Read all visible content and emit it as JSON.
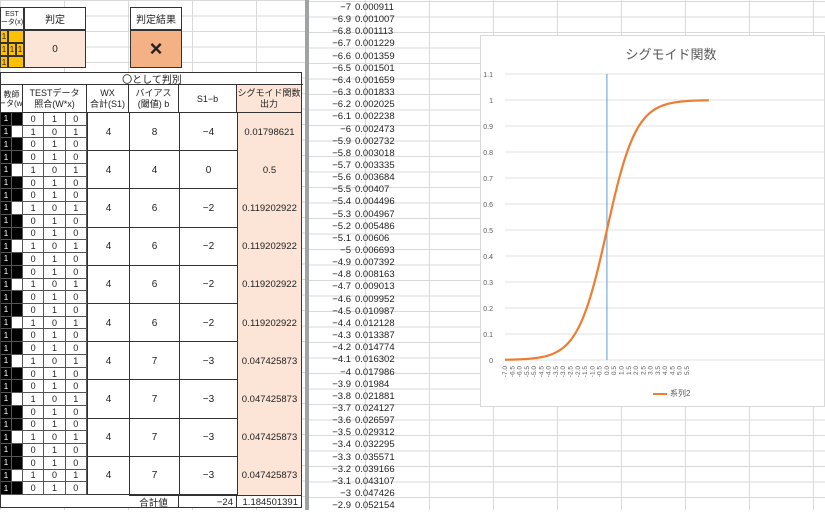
{
  "top": {
    "test_label_1": "EST",
    "test_label_2": "ータ(x)",
    "hantei_label": "判定",
    "hantei_value": "0",
    "result_label": "判定結果",
    "result_value": "×",
    "yellow_ones": [
      "1",
      "1",
      "1",
      "1",
      "1"
    ]
  },
  "main_table": {
    "group_title": "〇として判別",
    "headers": {
      "teacher": "教師\nータ(w)",
      "test_data": "TESTデータ\n照合(W*x)",
      "wx": "WX\n合計(S1)",
      "bias": "バイアス\n(閾値) b",
      "s1b": "S1−b",
      "sigmoid": "シグモイド関数\n出力"
    },
    "rows": [
      {
        "grid": [
          [
            "0",
            "1",
            "0"
          ],
          [
            "1",
            "0",
            "1"
          ],
          [
            "0",
            "1",
            "0"
          ]
        ],
        "wx": "4",
        "bias": "8",
        "s1b": "−4",
        "out": "0.01798621",
        "left": [
          "1",
          "1",
          "1"
        ]
      },
      {
        "grid": [
          [
            "0",
            "1",
            "0"
          ],
          [
            "1",
            "0",
            "1"
          ],
          [
            "0",
            "1",
            "0"
          ]
        ],
        "wx": "4",
        "bias": "4",
        "s1b": "0",
        "out": "0.5",
        "left": [
          "1",
          "1",
          "1"
        ]
      },
      {
        "grid": [
          [
            "0",
            "1",
            "0"
          ],
          [
            "1",
            "0",
            "1"
          ],
          [
            "0",
            "1",
            "0"
          ]
        ],
        "wx": "4",
        "bias": "6",
        "s1b": "−2",
        "out": "0.119202922",
        "left": [
          "1",
          "1",
          "1"
        ]
      },
      {
        "grid": [
          [
            "0",
            "1",
            "0"
          ],
          [
            "1",
            "0",
            "1"
          ],
          [
            "0",
            "1",
            "0"
          ]
        ],
        "wx": "4",
        "bias": "6",
        "s1b": "−2",
        "out": "0.119202922",
        "left": [
          "1",
          "1",
          "1"
        ]
      },
      {
        "grid": [
          [
            "0",
            "1",
            "0"
          ],
          [
            "1",
            "0",
            "1"
          ],
          [
            "0",
            "1",
            "0"
          ]
        ],
        "wx": "4",
        "bias": "6",
        "s1b": "−2",
        "out": "0.119202922",
        "left": [
          "1",
          "1",
          "1"
        ]
      },
      {
        "grid": [
          [
            "0",
            "1",
            "0"
          ],
          [
            "1",
            "0",
            "1"
          ],
          [
            "0",
            "1",
            "0"
          ]
        ],
        "wx": "4",
        "bias": "6",
        "s1b": "−2",
        "out": "0.119202922",
        "left": [
          "1",
          "1",
          "1"
        ]
      },
      {
        "grid": [
          [
            "0",
            "1",
            "0"
          ],
          [
            "1",
            "0",
            "1"
          ],
          [
            "0",
            "1",
            "0"
          ]
        ],
        "wx": "4",
        "bias": "7",
        "s1b": "−3",
        "out": "0.047425873",
        "left": [
          "1",
          "1",
          "1"
        ]
      },
      {
        "grid": [
          [
            "0",
            "1",
            "0"
          ],
          [
            "1",
            "0",
            "1"
          ],
          [
            "0",
            "1",
            "0"
          ]
        ],
        "wx": "4",
        "bias": "7",
        "s1b": "−3",
        "out": "0.047425873",
        "left": [
          "1",
          "1",
          "1"
        ]
      },
      {
        "grid": [
          [
            "0",
            "1",
            "0"
          ],
          [
            "1",
            "0",
            "1"
          ],
          [
            "0",
            "1",
            "0"
          ]
        ],
        "wx": "4",
        "bias": "7",
        "s1b": "−3",
        "out": "0.047425873",
        "left": [
          "1",
          "1",
          "1"
        ]
      },
      {
        "grid": [
          [
            "0",
            "1",
            "0"
          ],
          [
            "1",
            "0",
            "1"
          ],
          [
            "0",
            "1",
            "0"
          ]
        ],
        "wx": "4",
        "bias": "7",
        "s1b": "−3",
        "out": "0.047425873",
        "left": [
          "1",
          "1",
          "1"
        ]
      }
    ],
    "total_label": "合計値",
    "total_s1b": "−24",
    "total_out": "1.184501391"
  },
  "value_table": {
    "rows": [
      [
        "−7",
        "0.000911"
      ],
      [
        "−6.9",
        "0.001007"
      ],
      [
        "−6.8",
        "0.001113"
      ],
      [
        "−6.7",
        "0.001229"
      ],
      [
        "−6.6",
        "0.001359"
      ],
      [
        "−6.5",
        "0.001501"
      ],
      [
        "−6.4",
        "0.001659"
      ],
      [
        "−6.3",
        "0.001833"
      ],
      [
        "−6.2",
        "0.002025"
      ],
      [
        "−6.1",
        "0.002238"
      ],
      [
        "−6",
        "0.002473"
      ],
      [
        "−5.9",
        "0.002732"
      ],
      [
        "−5.8",
        "0.003018"
      ],
      [
        "−5.7",
        "0.003335"
      ],
      [
        "−5.6",
        "0.003684"
      ],
      [
        "−5.5",
        "0.00407"
      ],
      [
        "−5.4",
        "0.004496"
      ],
      [
        "−5.3",
        "0.004967"
      ],
      [
        "−5.2",
        "0.005486"
      ],
      [
        "−5.1",
        "0.00606"
      ],
      [
        "−5",
        "0.006693"
      ],
      [
        "−4.9",
        "0.007392"
      ],
      [
        "−4.8",
        "0.008163"
      ],
      [
        "−4.7",
        "0.009013"
      ],
      [
        "−4.6",
        "0.009952"
      ],
      [
        "−4.5",
        "0.010987"
      ],
      [
        "−4.4",
        "0.012128"
      ],
      [
        "−4.3",
        "0.013387"
      ],
      [
        "−4.2",
        "0.014774"
      ],
      [
        "−4.1",
        "0.016302"
      ],
      [
        "−4",
        "0.017986"
      ],
      [
        "−3.9",
        "0.01984"
      ],
      [
        "−3.8",
        "0.021881"
      ],
      [
        "−3.7",
        "0.024127"
      ],
      [
        "−3.6",
        "0.026597"
      ],
      [
        "−3.5",
        "0.029312"
      ],
      [
        "−3.4",
        "0.032295"
      ],
      [
        "−3.3",
        "0.035571"
      ],
      [
        "−3.2",
        "0.039166"
      ],
      [
        "−3.1",
        "0.043107"
      ],
      [
        "−3",
        "0.047426"
      ],
      [
        "−2.9",
        "0.052154"
      ]
    ]
  },
  "chart_data": {
    "type": "line",
    "title": "シグモイド関数",
    "legend": "系列2",
    "legend_position": "bottom",
    "grid": true,
    "ylim": [
      0,
      1.1
    ],
    "y_ticks": [
      "0",
      "0.1",
      "0.2",
      "0.3",
      "0.4",
      "0.5",
      "0.6",
      "0.7",
      "0.8",
      "0.9",
      "1",
      "1.1"
    ],
    "x_ticks": [
      "-7.0",
      "-6.5",
      "-6.0",
      "-5.5",
      "-5.0",
      "-4.5",
      "-4.0",
      "-3.5",
      "-3.0",
      "-2.5",
      "-2.0",
      "-1.5",
      "-1.0",
      "-0.5",
      "0.0",
      "0.5",
      "1.0",
      "1.5",
      "2.0",
      "2.5",
      "3.0",
      "3.5",
      "4.0",
      "4.5",
      "5.0",
      "5.5"
    ],
    "xlim": [
      -7.0,
      7.0
    ],
    "function": "sigmoid",
    "line_color": "#ed7d31",
    "vertical_line_x": 0.0,
    "vertical_line_color": "#5b9bd5"
  }
}
